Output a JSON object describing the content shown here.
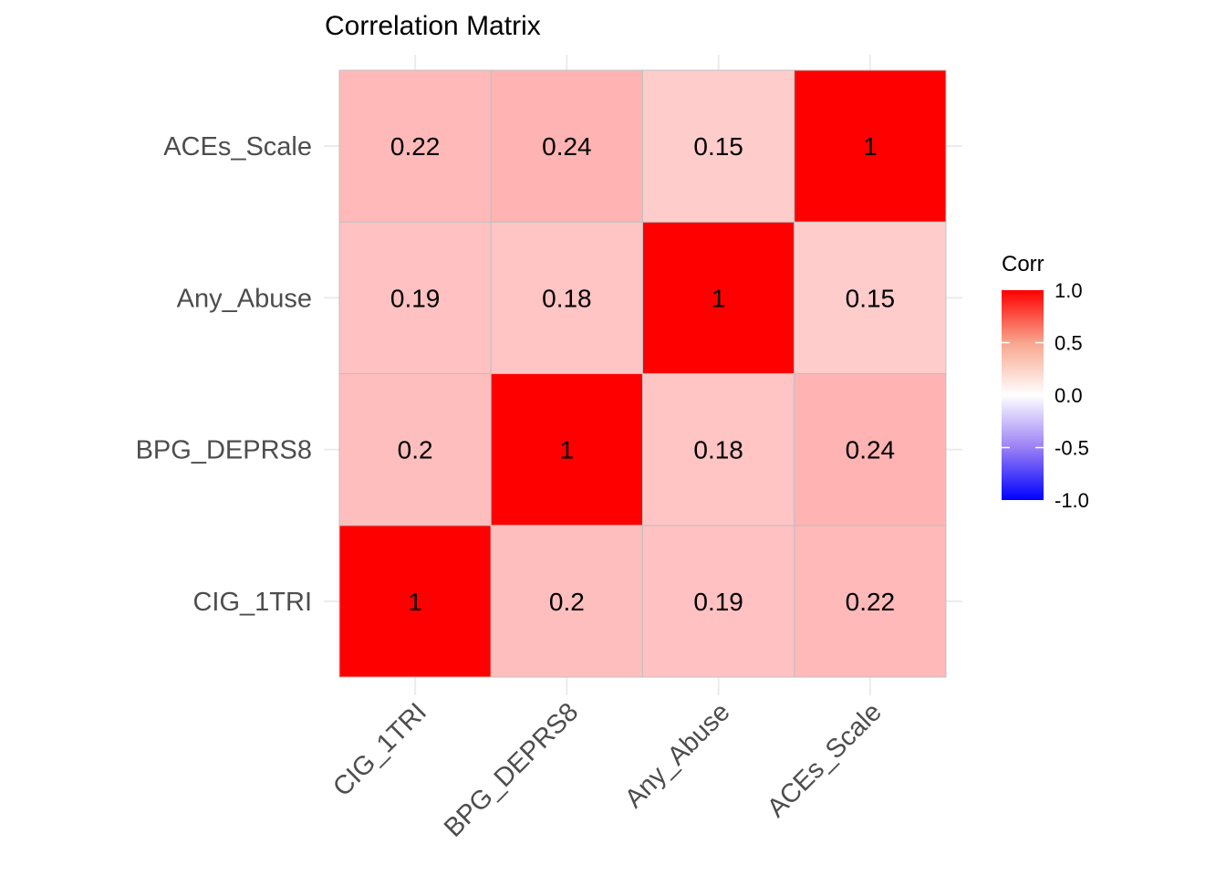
{
  "chart_data": {
    "type": "heatmap",
    "title": "Correlation Matrix",
    "xlabel": "",
    "ylabel": "",
    "x_categories": [
      "CIG_1TRI",
      "BPG_DEPRS8",
      "Any_Abuse",
      "ACEs_Scale"
    ],
    "y_categories": [
      "CIG_1TRI",
      "BPG_DEPRS8",
      "Any_Abuse",
      "ACEs_Scale"
    ],
    "matrix": [
      [
        1,
        0.2,
        0.19,
        0.22
      ],
      [
        0.2,
        1,
        0.18,
        0.24
      ],
      [
        0.19,
        0.18,
        1,
        0.15
      ],
      [
        0.22,
        0.24,
        0.15,
        1
      ]
    ],
    "value_labels": [
      [
        "1",
        "0.2",
        "0.19",
        "0.22"
      ],
      [
        "0.2",
        "1",
        "0.18",
        "0.24"
      ],
      [
        "0.19",
        "0.18",
        "1",
        "0.15"
      ],
      [
        "0.22",
        "0.24",
        "0.15",
        "1"
      ]
    ],
    "legend": {
      "title": "Corr",
      "position": "right",
      "range": [
        -1,
        1
      ],
      "ticks": [
        "1.0",
        "0.5",
        "0.0",
        "-0.5",
        "-1.0"
      ],
      "tick_values": [
        1,
        0.5,
        0,
        -0.5,
        -1
      ],
      "low_color": "#0000ff",
      "mid_color": "#ffffff",
      "high_color": "#ff0000"
    },
    "grid": true
  }
}
